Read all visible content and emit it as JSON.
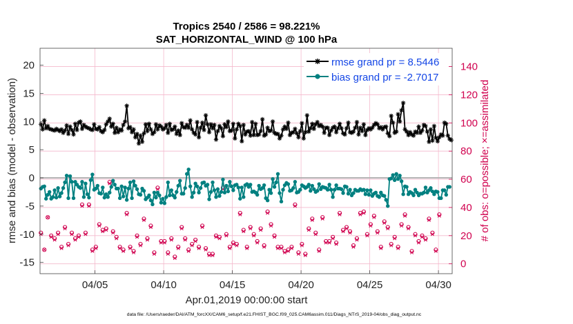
{
  "chart_data": {
    "type": "line",
    "title": "Tropics 2540 / 2586 = 98.221%",
    "subtitle": "SAT_HORIZONTAL_WIND @ 100 hPa",
    "xlabel": "Apr.01,2019 00:00:00 start",
    "ylabel_left": "rmse and bias (model - observation)",
    "ylabel_right": "# of obs: o=possible; ×=assimilated",
    "footer": "data file: /Users/raeder/DAI/ATM_forcXX/CAM6_setup/f.e21.FHIST_BGC.f09_025.CAM6assim.011/Diags_NTrS_2019-04/obs_diag_output.nc",
    "x_ticks": [
      "04/05",
      "04/10",
      "04/15",
      "04/20",
      "04/25",
      "04/30"
    ],
    "x_tick_days": [
      5,
      10,
      15,
      20,
      25,
      30
    ],
    "xlim": [
      1,
      31
    ],
    "ylim_left": [
      -17,
      23
    ],
    "yticks_left": [
      "20",
      "15",
      "10",
      "5",
      "0",
      "-5",
      "-10",
      "-15"
    ],
    "yticks_left_values": [
      20,
      15,
      10,
      5,
      0,
      -5,
      -10,
      -15
    ],
    "ylim_right": [
      -7,
      153
    ],
    "yticks_right": [
      "140",
      "120",
      "100",
      "80",
      "60",
      "40",
      "20",
      "0"
    ],
    "yticks_right_values": [
      140,
      120,
      100,
      80,
      60,
      40,
      20,
      0
    ],
    "legend_position": "top-right",
    "series": [
      {
        "name": "rmse grand pr = 8.5446",
        "axis": "left",
        "color": "#000000",
        "marker": "asterisk",
        "values": [
          9.5,
          8.6,
          10.2,
          8.8,
          9.2,
          8.7,
          8.6,
          8.5,
          8.4,
          8.7,
          8.5,
          8.3,
          8.6,
          8.0,
          8.4,
          9.3,
          7.8,
          9.1,
          8.5,
          7.7,
          9.6,
          8.5,
          9.8,
          10.0,
          8.7,
          9.4,
          9.1,
          8.9,
          8.8,
          8.6,
          8.5,
          9.5,
          8.7,
          8.6,
          9.0,
          8.3,
          8.1,
          8.5,
          9.5,
          10.0,
          10.5,
          9.1,
          9.6,
          8.0,
          8.9,
          8.1,
          8.6,
          8.4,
          9.4,
          10.0,
          12.8,
          8.8,
          9.0,
          8.1,
          8.6,
          7.2,
          7.8,
          6.1,
          7.5,
          6.4,
          7.9,
          9.5,
          8.3,
          9.6,
          8.6,
          7.8,
          8.1,
          9.5,
          8.6,
          9.3,
          9.1,
          8.6,
          8.8,
          9.4,
          8.0,
          9.6,
          8.5,
          8.6,
          9.1,
          7.8,
          8.4,
          7.6,
          9.7,
          9.0,
          8.9,
          9.4,
          8.9,
          10.2,
          8.6,
          8.0,
          7.7,
          9.9,
          7.2,
          8.9,
          9.8,
          8.5,
          11.1,
          9.5,
          8.1,
          9.5,
          8.8,
          9.4,
          6.8,
          8.3,
          9.2,
          8.8,
          7.4,
          9.5,
          9.0,
          10.0,
          8.3,
          8.4,
          9.6,
          7.0,
          8.6,
          9.6,
          9.2,
          6.5,
          9.4,
          7.7,
          8.2,
          8.3,
          7.5,
          9.9,
          7.6,
          9.6,
          7.6,
          7.7,
          8.3,
          10.4,
          7.5,
          7.7,
          8.9,
          8.3,
          8.4,
          10.0,
          8.0,
          7.8,
          7.8,
          7.0,
          7.5,
          8.6,
          9.1,
          8.7,
          9.8,
          7.6,
          8.0,
          8.1,
          8.7,
          7.9,
          7.2,
          8.3,
          9.7,
          7.0,
          8.1,
          11.1,
          8.2,
          8.8,
          9.6,
          8.7,
          9.5,
          9.9,
          9.2,
          9.4,
          9.1,
          8.0,
          8.9,
          8.9,
          7.6,
          8.4,
          8.9,
          9.1,
          8.1,
          8.8,
          9.6,
          8.8,
          7.9,
          7.7,
          8.8,
          9.8,
          8.1,
          8.0,
          8.2,
          8.9,
          9.9,
          7.7,
          8.9,
          8.3,
          9.5,
          7.6,
          8.5,
          8.8,
          8.6,
          8.9,
          9.4,
          9.7,
          9.5,
          8.8,
          9.0,
          8.6,
          9.0,
          9.1,
          7.9,
          7.4,
          11.0,
          9.8,
          8.0,
          8.2,
          11.3,
          10.0,
          12.0,
          13.3,
          8.6,
          8.2,
          7.6,
          8.1,
          7.7,
          7.5,
          8.2,
          8.0,
          9.1,
          8.0,
          8.4,
          9.4,
          9.2,
          8.2,
          6.4,
          8.6,
          6.6,
          9.2,
          7.1,
          6.5,
          7.2,
          7.7,
          7.5,
          9.8,
          9.6,
          7.5,
          6.9,
          6.7
        ]
      },
      {
        "name": "bias grand pr = -2.7017",
        "axis": "left",
        "color": "#008080",
        "marker": "dot",
        "values": [
          -1.9,
          -1.6,
          -1.5,
          -3.7,
          -3.0,
          -2.5,
          -3.7,
          -3.4,
          -2.2,
          -3.5,
          -1.8,
          -3.3,
          -2.7,
          -1.8,
          -0.8,
          0.4,
          -3.6,
          0.3,
          -0.7,
          -3.6,
          -0.7,
          -1.2,
          -1.6,
          -1.8,
          -0.7,
          -3.4,
          -1.0,
          -2.9,
          -3.5,
          -0.4,
          0.6,
          -2.1,
          -1.9,
          -1.4,
          -2.7,
          -2.8,
          -1.7,
          -3.5,
          -2.9,
          -3.4,
          -2.6,
          -1.6,
          -0.5,
          -1.2,
          -1.9,
          -1.9,
          -3.6,
          -1.5,
          -3.3,
          -1.7,
          -3.9,
          -1.9,
          -0.8,
          -3.6,
          -0.6,
          -1.4,
          -2.0,
          -2.9,
          -3.0,
          -1.9,
          -2.3,
          -3.8,
          -3.5,
          -3.1,
          -4.0,
          -4.7,
          -2.6,
          -3.5,
          -2.6,
          -3.1,
          -4.4,
          -3.7,
          -4.5,
          -3.4,
          -0.8,
          -3.1,
          -2.2,
          -3.1,
          -3.5,
          -2.5,
          -1.4,
          -0.5,
          -2.8,
          -2.8,
          -1.8,
          0.7,
          1.5,
          -1.5,
          -3.4,
          -2.6,
          -1.0,
          -1.5,
          -2.6,
          -1.8,
          -0.9,
          -0.8,
          -1.4,
          -1.2,
          -3.8,
          -2.5,
          -0.8,
          -2.2,
          -3.4,
          -2.0,
          -3.2,
          -2.5,
          -0.3,
          -2.6,
          -1.4,
          -2.4,
          -0.7,
          -1.5,
          -2.2,
          -1.3,
          -1.2,
          -1.7,
          -3.7,
          -1.7,
          -3.4,
          -1.3,
          -1.1,
          -1.6,
          -1.2,
          -2.5,
          -2.4,
          -2.6,
          -3.0,
          -1.4,
          -2.0,
          -1.8,
          -1.3,
          -3.6,
          -4.0,
          -2.1,
          -2.7,
          -0.2,
          -1.6,
          -0.8,
          0.7,
          -2.7,
          -4.2,
          -2.1,
          -1.3,
          -0.9,
          -1.1,
          -2.3,
          -2.2,
          -1.8,
          -0.7,
          -2.6,
          -2.5,
          -2.1,
          -1.3,
          -1.5,
          -1.8,
          -1.6,
          -1.2,
          -2.3,
          -1.4,
          -2.0,
          -2.5,
          -2.3,
          -1.1,
          -2.0,
          -1.6,
          -1.7,
          -1.8,
          -2.1,
          -1.2,
          -2.1,
          -3.4,
          -2.1,
          -1.3,
          -1.9,
          -1.9,
          -2.0,
          -2.7,
          -1.5,
          -1.6,
          -2.8,
          -2.1,
          -3.1,
          -2.7,
          -2.1,
          -2.3,
          -2.3,
          -2.0,
          -2.2,
          -2.1,
          -2.9,
          -2.2,
          -3.0,
          -2.2,
          -3.2,
          -2.8,
          -2.6,
          -3.2,
          -3.4,
          -2.6,
          -3.1,
          -3.2,
          -3.9,
          -5.0,
          -0.2,
          -0.1,
          0.5,
          -0.4,
          0.7,
          -0.2,
          0.4,
          -0.6,
          -2.9,
          -1.5,
          -1.6,
          -2.9,
          -2.5,
          -2.7,
          -3.1,
          -2.1,
          -2.6,
          -3.1,
          -2.8,
          -2.8,
          -2.6,
          -1.7,
          -2.6,
          -2.2,
          -1.8,
          -2.4,
          -2.9,
          -2.4,
          -2.5,
          -3.6,
          -3.6,
          -2.2,
          -2.2,
          -3.0,
          -1.6,
          -1.6
        ]
      },
      {
        "name": "# of obs possible",
        "axis": "right",
        "color": "#d0004e",
        "marker": "circle",
        "values": [
          22,
          23,
          10,
          25,
          33,
          8,
          20,
          32,
          18,
          28,
          22,
          17,
          12,
          25,
          26,
          44,
          14,
          18,
          22,
          82,
          18,
          18,
          20,
          21,
          42,
          12,
          22,
          14,
          42,
          36,
          10,
          20,
          12,
          10,
          28,
          16,
          24,
          34,
          25,
          26,
          58,
          20,
          23,
          17,
          19,
          15,
          12,
          12,
          10,
          10,
          36,
          11,
          12,
          10,
          9,
          17,
          20,
          23,
          14,
          20,
          32,
          28,
          18,
          14,
          27,
          23,
          8,
          23,
          54,
          22,
          16,
          10,
          16,
          12,
          8,
          12,
          18,
          13,
          5,
          13,
          12,
          30,
          26,
          15,
          18,
          14,
          10,
          30,
          14,
          11,
          17,
          20,
          12,
          24,
          27,
          32,
          11,
          8,
          7,
          7,
          7,
          27,
          20,
          23,
          19,
          23,
          54,
          17,
          21,
          10,
          12,
          22,
          15,
          17,
          14,
          19,
          36,
          21,
          24,
          10,
          12,
          12,
          26,
          20,
          21,
          27,
          16,
          22,
          25,
          42,
          13,
          10,
          37,
          28,
          28,
          22,
          20,
          13,
          12,
          17,
          12,
          36,
          9,
          16,
          10,
          16,
          12,
          10,
          42,
          21,
          8,
          34,
          14,
          21,
          7,
          18,
          25,
          21,
          32,
          10,
          22,
          18,
          10,
          7,
          33,
          12,
          16,
          31,
          16,
          11,
          19,
          9,
          15,
          20,
          36,
          18,
          24,
          12,
          26,
          24,
          23,
          20,
          13,
          10,
          18,
          22,
          36,
          8,
          37,
          29,
          21,
          18,
          28,
          18,
          34,
          21,
          23,
          31,
          12,
          6,
          30,
          16,
          26,
          17,
          14,
          8,
          19,
          29,
          12,
          14,
          28,
          6,
          35,
          5,
          26,
          19,
          9,
          17,
          21,
          29,
          16,
          28,
          20,
          26,
          18,
          17,
          32,
          62,
          22,
          36,
          10,
          30,
          35,
          5
        ]
      },
      {
        "name": "# of obs assimilated",
        "axis": "right",
        "color": "#d0004e",
        "marker": "cross",
        "values": [
          21,
          22,
          10,
          24,
          33,
          8,
          19,
          31,
          17,
          27,
          21,
          16,
          11,
          24,
          25,
          43,
          13,
          17,
          21,
          81,
          17,
          17,
          19,
          20,
          41,
          11,
          21,
          13,
          41,
          35,
          9,
          19,
          11,
          9,
          27,
          15,
          23,
          33,
          24,
          25,
          57,
          19,
          22,
          16,
          18,
          14,
          11,
          11,
          9,
          9,
          35,
          10,
          11,
          9,
          8,
          16,
          19,
          22,
          13,
          19,
          31,
          27,
          17,
          13,
          26,
          22,
          7,
          22,
          53,
          21,
          15,
          9,
          15,
          11,
          7,
          11,
          17,
          12,
          4,
          12,
          11,
          29,
          25,
          14,
          17,
          13,
          9,
          29,
          13,
          10,
          16,
          19,
          11,
          23,
          26,
          31,
          10,
          7,
          6,
          6,
          6,
          26,
          19,
          22,
          18,
          22,
          53,
          16,
          20,
          9,
          11,
          21,
          14,
          16,
          13,
          18,
          35,
          20,
          23,
          9,
          11,
          11,
          25,
          19,
          20,
          26,
          15,
          21,
          24,
          41,
          12,
          9,
          36,
          27,
          27,
          21,
          19,
          12,
          11,
          16,
          11,
          35,
          8,
          15,
          9,
          15,
          11,
          9,
          41,
          20,
          7,
          33,
          13,
          20,
          6,
          17,
          24,
          20,
          31,
          9,
          21,
          17,
          9,
          6,
          32,
          11,
          15,
          30,
          15,
          10,
          18,
          8,
          14,
          19,
          35,
          17,
          23,
          11,
          25,
          23,
          22,
          19,
          12,
          9,
          17,
          21,
          35,
          7,
          36,
          28,
          20,
          17,
          27,
          17,
          33,
          20,
          22,
          30,
          11,
          5,
          29,
          15,
          25,
          16,
          13,
          7,
          18,
          28,
          11,
          13,
          27,
          5,
          34,
          4,
          25,
          18,
          8,
          16,
          20,
          28,
          15,
          27,
          19,
          25,
          17,
          16,
          31,
          61,
          21,
          35,
          9,
          29,
          34,
          4
        ]
      }
    ],
    "colors": {
      "rmse": "#000000",
      "bias": "#008080",
      "obs": "#d0004e",
      "grid": "#f4b8cc",
      "zero_line": "#b4b4b4",
      "legend_text": "#1446e6"
    }
  }
}
